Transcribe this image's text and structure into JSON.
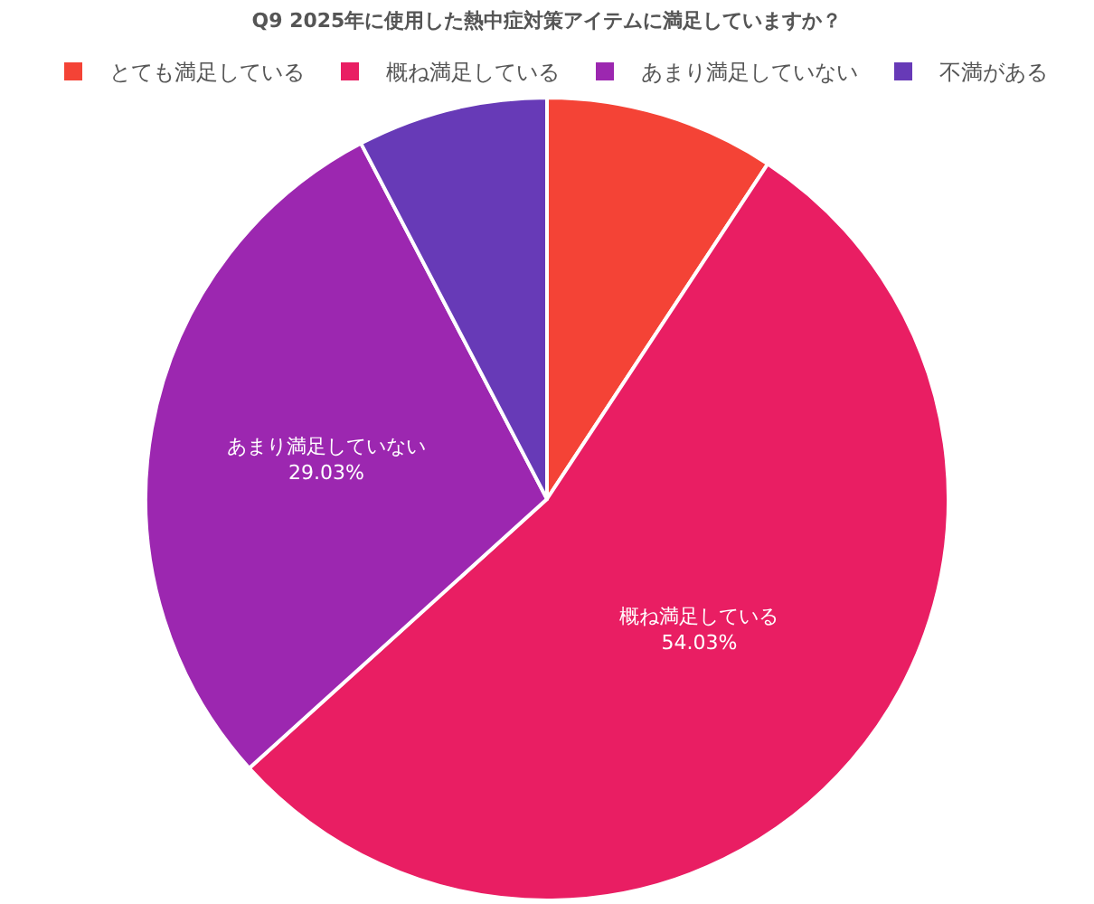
{
  "chart_data": {
    "type": "pie",
    "title": "Q9 2025年に使用した熱中症対策アイテムに満足していますか？",
    "categories": [
      "とても満足している",
      "概ね満足している",
      "あまり満足していない",
      "不満がある"
    ],
    "values": [
      9.27,
      54.03,
      29.03,
      7.67
    ],
    "colors": [
      "#f44336",
      "#e91e63",
      "#9c27b0",
      "#673ab7"
    ],
    "value_labels": [
      null,
      "54.03%",
      "29.03%",
      null
    ],
    "legend": "top"
  }
}
